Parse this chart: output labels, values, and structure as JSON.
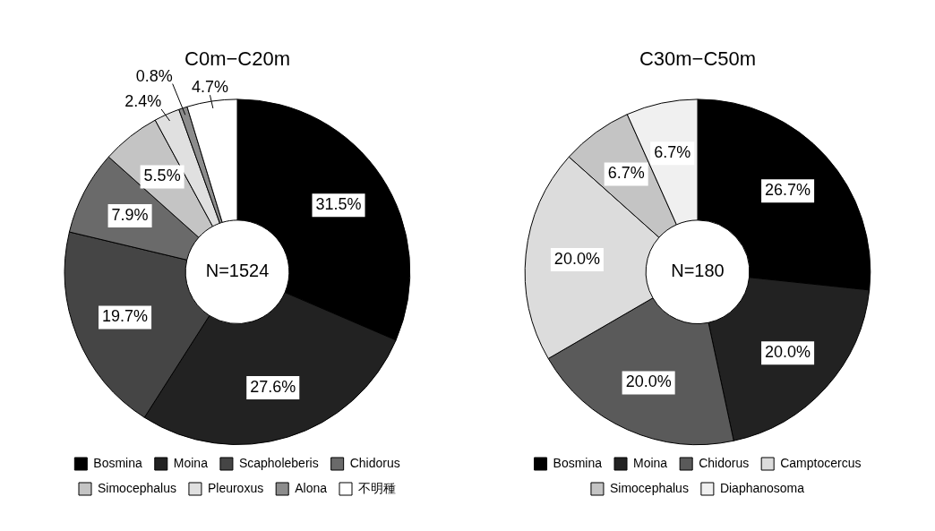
{
  "chart_data": [
    {
      "type": "donut",
      "title": "C0m−C20m",
      "categories": [
        "Bosmina",
        "Moina",
        "Scapholeberis",
        "Chidorus",
        "Simocephalus",
        "Pleuroxus",
        "Alona",
        "不明種"
      ],
      "values": [
        31.5,
        27.6,
        19.7,
        7.9,
        5.5,
        2.4,
        0.8,
        4.7
      ],
      "colors": [
        "#000000",
        "#222222",
        "#454545",
        "#6a6a6a",
        "#c4c4c4",
        "#e0e0e0",
        "#8c8c8c",
        "#ffffff"
      ],
      "value_labels": [
        "31.5%",
        "27.6%",
        "19.7%",
        "7.9%",
        "5.5%",
        "2.4%",
        "0.8%",
        "4.7%"
      ],
      "annotations": [
        "N=1524"
      ],
      "legend": "bottom"
    },
    {
      "type": "donut",
      "title": "C30m−C50m",
      "categories": [
        "Bosmina",
        "Moina",
        "Chidorus",
        "Camptocercus",
        "Simocephalus",
        "Diaphanosoma"
      ],
      "values": [
        26.7,
        20.0,
        20.0,
        20.0,
        6.7,
        6.7
      ],
      "colors": [
        "#000000",
        "#222222",
        "#5a5a5a",
        "#dcdcdc",
        "#c4c4c4",
        "#f0f0f0"
      ],
      "value_labels": [
        "26.7%",
        "20.0%",
        "20.0%",
        "20.0%",
        "6.7%",
        "6.7%"
      ],
      "annotations": [
        "N=180"
      ],
      "legend": "bottom"
    }
  ]
}
